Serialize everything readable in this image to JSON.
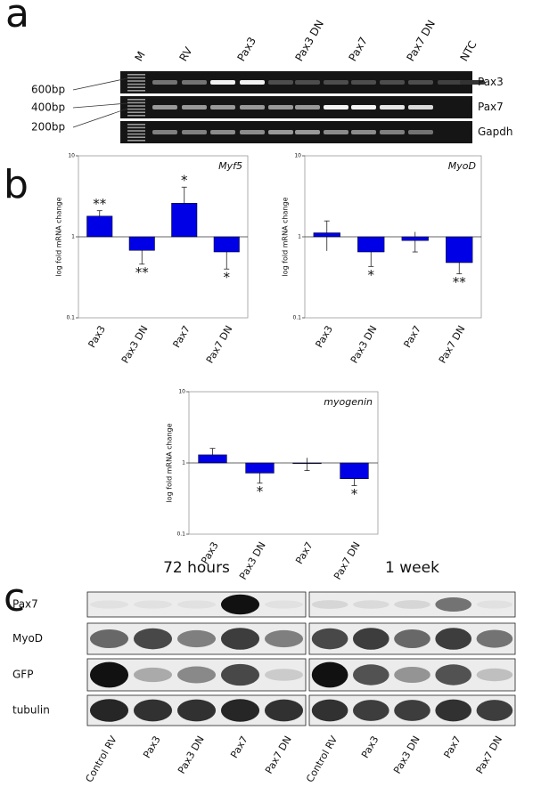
{
  "panel_labels": [
    "a",
    "b",
    "c"
  ],
  "gel": {
    "lanes": [
      "M",
      "RV",
      "Pax3",
      "Pax3 DN",
      "Pax7",
      "Pax7 DN",
      "NTC"
    ],
    "sizes": [
      "600bp",
      "400bp",
      "200bp"
    ],
    "rows": [
      "Pax3",
      "Pax7",
      "Gapdh"
    ]
  },
  "chart_data": [
    {
      "type": "bar",
      "title": "Myf5",
      "y_label": "log fold mRNA change",
      "categories": [
        "Pax3",
        "Pax3 DN",
        "Pax7",
        "Pax7 DN"
      ],
      "values": [
        1.8,
        0.68,
        2.6,
        0.65
      ],
      "errors": [
        0.3,
        0.22,
        1.5,
        0.25
      ],
      "annotations": [
        "**",
        "**",
        "*",
        "*"
      ],
      "color": "#0000e6",
      "log_scale": true,
      "ylim": [
        0.1,
        10
      ],
      "yticks": [
        0.1,
        1,
        10
      ]
    },
    {
      "type": "bar",
      "title": "MyoD",
      "y_label": "log fold mRNA change",
      "categories": [
        "Pax3",
        "Pax3 DN",
        "Pax7",
        "Pax7 DN"
      ],
      "values": [
        1.12,
        0.65,
        0.9,
        0.48
      ],
      "errors": [
        0.45,
        0.22,
        0.25,
        0.13
      ],
      "annotations": [
        null,
        "*",
        null,
        "**"
      ],
      "color": "#0000e6",
      "log_scale": true,
      "ylim": [
        0.1,
        10
      ],
      "yticks": [
        0.1,
        1,
        10
      ]
    },
    {
      "type": "bar",
      "title": "myogenin",
      "y_label": "log fold mRNA change",
      "categories": [
        "Pax3",
        "Pax3 DN",
        "Pax7",
        "Pax7 DN"
      ],
      "values": [
        1.3,
        0.72,
        0.98,
        0.6
      ],
      "errors": [
        0.3,
        0.2,
        0.2,
        0.12
      ],
      "annotations": [
        null,
        "*",
        null,
        "*"
      ],
      "color": "#0000e6",
      "log_scale": true,
      "ylim": [
        0.1,
        10
      ],
      "yticks": [
        0.1,
        1,
        10
      ]
    }
  ],
  "western": {
    "headers": [
      "72 hours",
      "1 week"
    ],
    "rows": [
      "Pax7",
      "MyoD",
      "GFP",
      "tubulin"
    ],
    "lanes": [
      "Control RV",
      "Pax3",
      "Pax3 DN",
      "Pax7",
      "Pax7 DN"
    ]
  }
}
